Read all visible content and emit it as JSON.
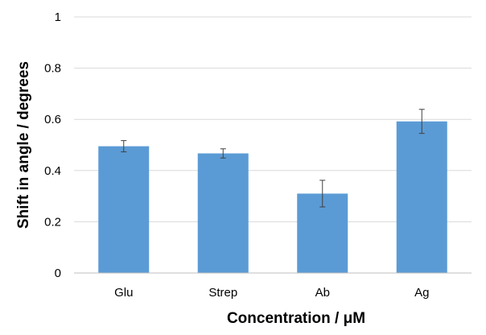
{
  "chart_data": {
    "type": "bar",
    "categories": [
      "Glu",
      "Strep",
      "Ab",
      "Ag"
    ],
    "values": [
      0.495,
      0.467,
      0.31,
      0.592
    ],
    "errors": [
      0.022,
      0.018,
      0.052,
      0.047
    ],
    "xlabel": "Concentration / μM",
    "ylabel": "Shift in angle / degrees",
    "ylim": [
      0,
      1
    ],
    "yticks": [
      0,
      0.2,
      0.4,
      0.6,
      0.8,
      1
    ],
    "ytick_labels": [
      "0",
      "0.2",
      "0.4",
      "0.6",
      "0.8",
      "1"
    ],
    "grid": true,
    "legend": "none",
    "bar_color": "#5b9bd5",
    "grid_color": "#d9d9d9"
  }
}
